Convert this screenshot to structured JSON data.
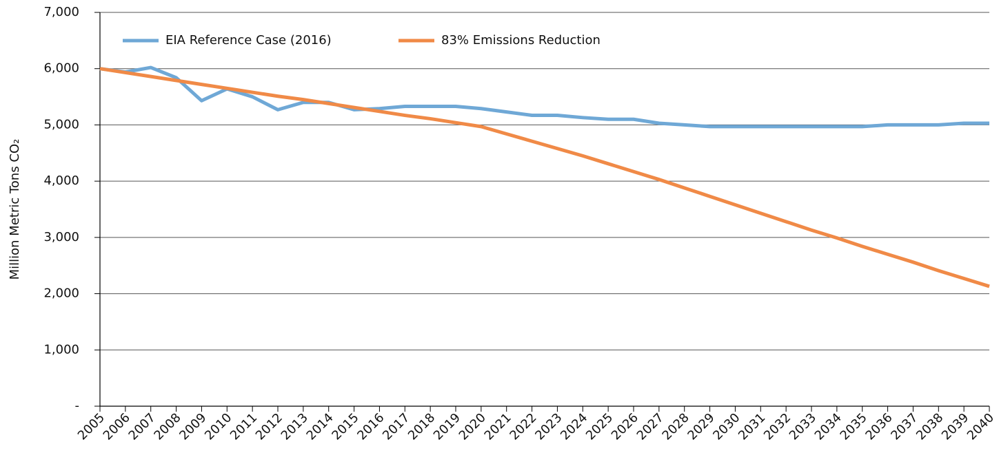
{
  "chart_data": {
    "type": "line",
    "y_label": "Million Metric Tons CO₂",
    "categories": [
      "2005",
      "2006",
      "2007",
      "2008",
      "2009",
      "2010",
      "2011",
      "2012",
      "2013",
      "2014",
      "2015",
      "2016",
      "2017",
      "2018",
      "2019",
      "2020",
      "2021",
      "2022",
      "2023",
      "2024",
      "2025",
      "2026",
      "2027",
      "2028",
      "2029",
      "2030",
      "2031",
      "2032",
      "2033",
      "2034",
      "2035",
      "2036",
      "2037",
      "2038",
      "2039",
      "2040"
    ],
    "series": [
      {
        "name": "EIA Reference Case (2016)",
        "color": "#6fa8d6",
        "values": [
          6000,
          5940,
          6020,
          5840,
          5430,
          5640,
          5500,
          5270,
          5400,
          5400,
          5270,
          5290,
          5330,
          5330,
          5330,
          5290,
          5230,
          5170,
          5170,
          5130,
          5100,
          5100,
          5030,
          5000,
          4970,
          4970,
          4970,
          4970,
          4970,
          4970,
          4970,
          5000,
          5000,
          5000,
          5030,
          5030
        ]
      },
      {
        "name": "83% Emissions Reduction",
        "color": "#f08a47",
        "values": [
          6000,
          5930,
          5860,
          5790,
          5720,
          5650,
          5580,
          5510,
          5450,
          5380,
          5310,
          5240,
          5170,
          5110,
          5040,
          4970,
          4840,
          4710,
          4580,
          4450,
          4310,
          4170,
          4030,
          3880,
          3730,
          3580,
          3430,
          3280,
          3130,
          2990,
          2840,
          2700,
          2560,
          2410,
          2270,
          2130
        ]
      }
    ],
    "ylim": [
      0,
      7000
    ],
    "yticks": [
      {
        "value": 0,
        "label": "-"
      },
      {
        "value": 1000,
        "label": "1,000"
      },
      {
        "value": 2000,
        "label": "2,000"
      },
      {
        "value": 3000,
        "label": "3,000"
      },
      {
        "value": 4000,
        "label": "4,000"
      },
      {
        "value": 5000,
        "label": "5,000"
      },
      {
        "value": 6000,
        "label": "6,000"
      },
      {
        "value": 7000,
        "label": "7,000"
      }
    ],
    "grid": true,
    "legend": "top-left"
  }
}
